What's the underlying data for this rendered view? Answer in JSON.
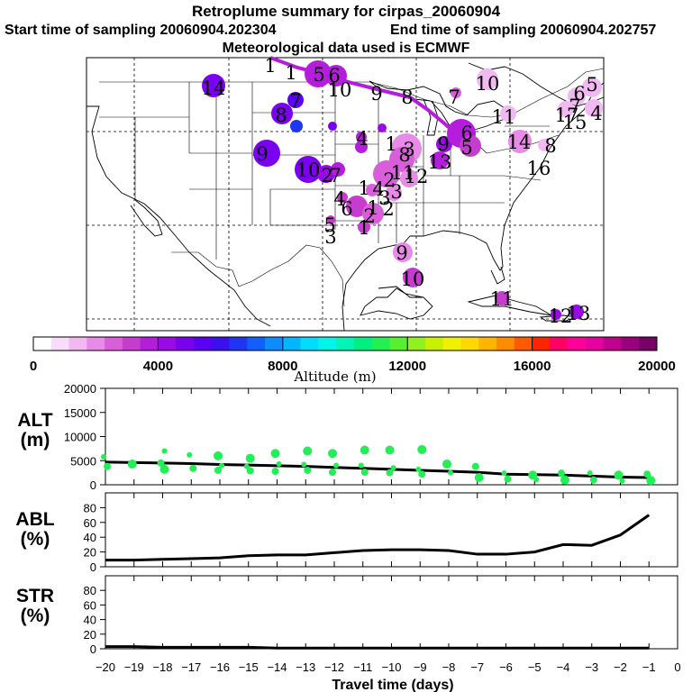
{
  "header": {
    "title": "Retroplume summary for cirpas_20060904",
    "start_label": "Start time of sampling 20060904.202304",
    "end_label": "End time of sampling 20060904.202757",
    "met_label": "Meteorological data used is ECMWF"
  },
  "colorbar": {
    "ticks": [
      "0",
      "4000",
      "8000",
      "12000",
      "16000",
      "20000"
    ],
    "label": "Altitude (m)",
    "colors": [
      "#ffffff",
      "#f9dcf9",
      "#f2b8f2",
      "#e88ae8",
      "#d95ed9",
      "#c63ccf",
      "#b51ddd",
      "#9a0ae6",
      "#7a00f0",
      "#5a00f5",
      "#3a10f0",
      "#1f35f2",
      "#1060ff",
      "#0c8cff",
      "#00b6ff",
      "#00dcff",
      "#00f5e6",
      "#00f5b4",
      "#00f080",
      "#20f050",
      "#55f030",
      "#90f020",
      "#c8f000",
      "#f0f000",
      "#ffd800",
      "#ffb400",
      "#ff8c00",
      "#ff5a00",
      "#ff2400",
      "#ff0066",
      "#ff0099",
      "#e8009e",
      "#c0008c",
      "#9a007a",
      "#760066"
    ]
  },
  "map": {
    "track_color": "#b51ddd",
    "ages": [
      "1",
      "1",
      "10",
      "9",
      "8",
      "7",
      "6",
      "5",
      "4",
      "3",
      "2",
      "1",
      "1",
      "2",
      "3",
      "4",
      "5",
      "6",
      "7",
      "8",
      "9",
      "10",
      "11",
      "12",
      "13",
      "14",
      "11",
      "10",
      "9",
      "8",
      "7",
      "6",
      "5",
      "4",
      "3",
      "2",
      "1",
      "1",
      "2",
      "3",
      "4",
      "5",
      "6",
      "7",
      "8",
      "9",
      "10",
      "11",
      "12",
      "13",
      "14",
      "15",
      "16",
      "17"
    ]
  },
  "chart_data": [
    {
      "type": "line",
      "panel": "ALT",
      "ylabel": "ALT\n(m)",
      "ylabel_lines": [
        "ALT",
        "(m)"
      ],
      "xlabel": "Travel time (days)",
      "xticks": [
        -20,
        -19,
        -18,
        -17,
        -16,
        -15,
        -14,
        -13,
        -12,
        -11,
        -10,
        -9,
        -8,
        -7,
        -6,
        -5,
        -4,
        -3,
        -2,
        -1,
        0
      ],
      "xtick_labels": [
        "−20",
        "−19",
        "−18",
        "−17",
        "−16",
        "−15",
        "−14",
        "−13",
        "−12",
        "−11",
        "−10",
        "−9",
        "−8",
        "−7",
        "−6",
        "−5",
        "−4",
        "−3",
        "−2",
        "−1",
        "0"
      ],
      "ylim": [
        0,
        20000
      ],
      "yticks": [
        0,
        5000,
        10000,
        15000,
        20000
      ],
      "ytick_labels": [
        "0",
        "5000",
        "10000",
        "15000",
        "20000"
      ],
      "series": [
        {
          "name": "median altitude",
          "x": [
            -20,
            -19,
            -18,
            -17,
            -16,
            -15,
            -14,
            -13,
            -12,
            -11,
            -10,
            -9,
            -8,
            -7,
            -6,
            -5,
            -4,
            -3,
            -2,
            -1
          ],
          "values": [
            4700,
            4600,
            4500,
            4400,
            4200,
            4100,
            3950,
            3800,
            3600,
            3400,
            3200,
            3000,
            2800,
            2600,
            2200,
            2100,
            2000,
            1800,
            1600,
            1500
          ]
        },
        {
          "name": "cluster altitudes",
          "x": [
            -20,
            -20,
            -19,
            -18,
            -18,
            -18,
            -17,
            -17,
            -16,
            -16,
            -16,
            -15,
            -15,
            -15,
            -14,
            -14,
            -14,
            -13,
            -13,
            -13,
            -12,
            -12,
            -12,
            -11,
            -11,
            -11,
            -10,
            -10,
            -10,
            -9,
            -9,
            -9,
            -8,
            -8,
            -7,
            -7,
            -6,
            -6,
            -5,
            -5,
            -4,
            -4,
            -3,
            -3,
            -2,
            -2,
            -1,
            -1
          ],
          "values": [
            5800,
            3800,
            4300,
            7000,
            4500,
            3200,
            6200,
            3400,
            6000,
            4000,
            3000,
            5500,
            3800,
            2900,
            6500,
            4300,
            2800,
            7000,
            4200,
            3000,
            6500,
            4000,
            2600,
            7200,
            4000,
            2600,
            7200,
            3500,
            2500,
            7300,
            3200,
            2200,
            4300,
            2500,
            3800,
            1500,
            2400,
            1200,
            2000,
            1100,
            2400,
            1000,
            2400,
            1000,
            2000,
            800,
            2200,
            900
          ]
        }
      ]
    },
    {
      "type": "line",
      "panel": "ABL",
      "ylabel": "ABL\n(%)",
      "ylabel_lines": [
        "ABL",
        "(%)"
      ],
      "ylim": [
        0,
        100
      ],
      "yticks": [
        0,
        20,
        40,
        60,
        80
      ],
      "ytick_labels": [
        "0",
        "20",
        "40",
        "60",
        "80"
      ],
      "series": [
        {
          "name": "ABL fraction",
          "x": [
            -20,
            -19,
            -18,
            -17,
            -16,
            -15,
            -14,
            -13,
            -12,
            -11,
            -10,
            -9,
            -8,
            -7,
            -6,
            -5,
            -4,
            -3,
            -2,
            -1
          ],
          "values": [
            9,
            9,
            10,
            11,
            12,
            15,
            16,
            16,
            19,
            22,
            23,
            23,
            22,
            17,
            17,
            20,
            30,
            29,
            43,
            70
          ]
        }
      ]
    },
    {
      "type": "line",
      "panel": "STR",
      "ylabel": "STR\n(%)",
      "ylabel_lines": [
        "STR",
        "(%)"
      ],
      "ylim": [
        0,
        100
      ],
      "yticks": [
        0,
        20,
        40,
        60,
        80
      ],
      "ytick_labels": [
        "0",
        "20",
        "40",
        "60",
        "80"
      ],
      "series": [
        {
          "name": "STR fraction",
          "x": [
            -20,
            -19,
            -18,
            -17,
            -16,
            -15,
            -14,
            -13,
            -12,
            -11,
            -10,
            -9,
            -8,
            -7,
            -6,
            -5,
            -4,
            -3,
            -2,
            -1
          ],
          "values": [
            3,
            3,
            2,
            2,
            2,
            2,
            1,
            1,
            1,
            1,
            1,
            1,
            1,
            1,
            1,
            1,
            1,
            1,
            1,
            1
          ]
        }
      ]
    }
  ]
}
